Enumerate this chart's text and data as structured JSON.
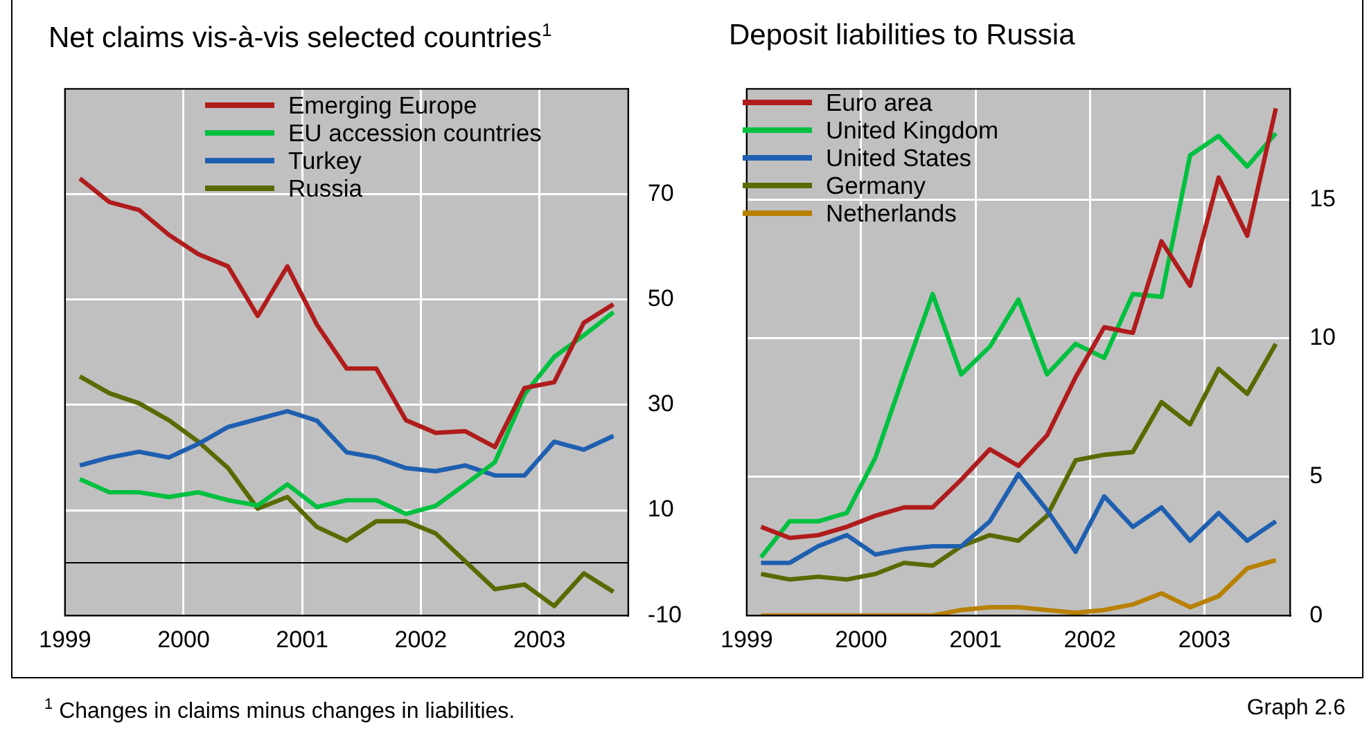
{
  "chart_data": [
    {
      "type": "line",
      "title": "Net claims vis-à-vis selected countries$^{1}$",
      "x": [
        1999.125,
        1999.375,
        1999.625,
        1999.875,
        2000.125,
        2000.375,
        2000.625,
        2000.875,
        2001.125,
        2001.375,
        2001.625,
        2001.875,
        2002.125,
        2002.375,
        2002.625,
        2002.875,
        2003.125,
        2003.375,
        2003.625
      ],
      "xlim": [
        1999,
        2003.75
      ],
      "xticks": [
        1999,
        2000,
        2001,
        2002,
        2003
      ],
      "ylim": [
        -10,
        90
      ],
      "yticks": [
        -10,
        10,
        30,
        50,
        70
      ],
      "grid": true,
      "legend": "top",
      "marker": "none",
      "ref_lines": [
        {
          "axis": "y",
          "value": 0,
          "color": "#000000"
        }
      ],
      "annotations": [
        "$^{1}$  Changes in claims minus changes in liabilities."
      ],
      "series": [
        {
          "name": "Emerging Europe",
          "color": "#b01c1c",
          "values": [
            73.0,
            68.5,
            67.0,
            62.3,
            58.6,
            56.3,
            46.9,
            56.3,
            45.2,
            36.9,
            36.9,
            27.1,
            24.7,
            25.0,
            22.0,
            33.2,
            34.3,
            45.6,
            49.1
          ]
        },
        {
          "name": "EU accession countries",
          "color": "#00c040",
          "values": [
            15.9,
            13.4,
            13.4,
            12.5,
            13.4,
            11.9,
            10.9,
            14.9,
            10.6,
            11.9,
            11.9,
            9.3,
            10.8,
            14.9,
            19.1,
            32.0,
            39.1,
            43.2,
            47.6
          ]
        },
        {
          "name": "Turkey",
          "color": "#1f5fb0",
          "values": [
            18.5,
            20.0,
            21.1,
            20.0,
            22.6,
            25.8,
            27.3,
            28.8,
            27.0,
            21.0,
            20.0,
            18.0,
            17.4,
            18.5,
            16.6,
            16.6,
            23.0,
            21.5,
            24.1
          ]
        },
        {
          "name": "Russia",
          "color": "#5a6a00",
          "values": [
            35.4,
            32.2,
            30.3,
            27.1,
            23.0,
            18.0,
            10.3,
            12.5,
            6.8,
            4.2,
            7.9,
            7.9,
            5.6,
            0.3,
            -5.0,
            -4.1,
            -8.2,
            -2.0,
            -5.5
          ]
        }
      ]
    },
    {
      "type": "line",
      "title": "Deposit liabilities to Russia",
      "x": [
        1999.125,
        1999.375,
        1999.625,
        1999.875,
        2000.125,
        2000.375,
        2000.625,
        2000.875,
        2001.125,
        2001.375,
        2001.625,
        2001.875,
        2002.125,
        2002.375,
        2002.625,
        2002.875,
        2003.125,
        2003.375,
        2003.625
      ],
      "xlim": [
        1999,
        2003.75
      ],
      "xticks": [
        1999,
        2000,
        2001,
        2002,
        2003
      ],
      "ylim": [
        0,
        19
      ],
      "yticks": [
        0,
        5,
        10,
        15
      ],
      "grid": true,
      "legend": "top left",
      "marker": "none",
      "annotations": [
        "Graph 2.6"
      ],
      "series": [
        {
          "name": "Euro area",
          "color": "#b01c1c",
          "values": [
            3.2,
            2.8,
            2.9,
            3.2,
            3.6,
            3.9,
            3.9,
            4.9,
            6.0,
            5.4,
            6.5,
            8.6,
            10.4,
            10.2,
            13.5,
            11.9,
            15.8,
            13.7,
            18.3
          ]
        },
        {
          "name": "United Kingdom",
          "color": "#00c040",
          "values": [
            2.1,
            3.4,
            3.4,
            3.7,
            5.7,
            8.7,
            11.6,
            8.7,
            9.7,
            11.4,
            8.7,
            9.8,
            9.3,
            11.6,
            11.5,
            16.6,
            17.3,
            16.2,
            17.4
          ]
        },
        {
          "name": "United States",
          "color": "#1f5fb0",
          "values": [
            1.9,
            1.9,
            2.5,
            2.9,
            2.2,
            2.4,
            2.5,
            2.5,
            3.4,
            5.1,
            3.8,
            2.3,
            4.3,
            3.2,
            3.9,
            2.7,
            3.7,
            2.7,
            3.4
          ]
        },
        {
          "name": "Germany",
          "color": "#5a6a00",
          "values": [
            1.5,
            1.3,
            1.4,
            1.3,
            1.5,
            1.9,
            1.8,
            2.5,
            2.9,
            2.7,
            3.6,
            5.6,
            5.8,
            5.9,
            7.7,
            6.9,
            8.9,
            8.0,
            9.8
          ]
        },
        {
          "name": "Netherlands",
          "color": "#b88000",
          "values": [
            0,
            0,
            0,
            0,
            0,
            0,
            0,
            0.2,
            0.3,
            0.3,
            0.2,
            0.1,
            0.2,
            0.4,
            0.8,
            0.3,
            0.7,
            1.7,
            2.0
          ]
        }
      ]
    }
  ]
}
